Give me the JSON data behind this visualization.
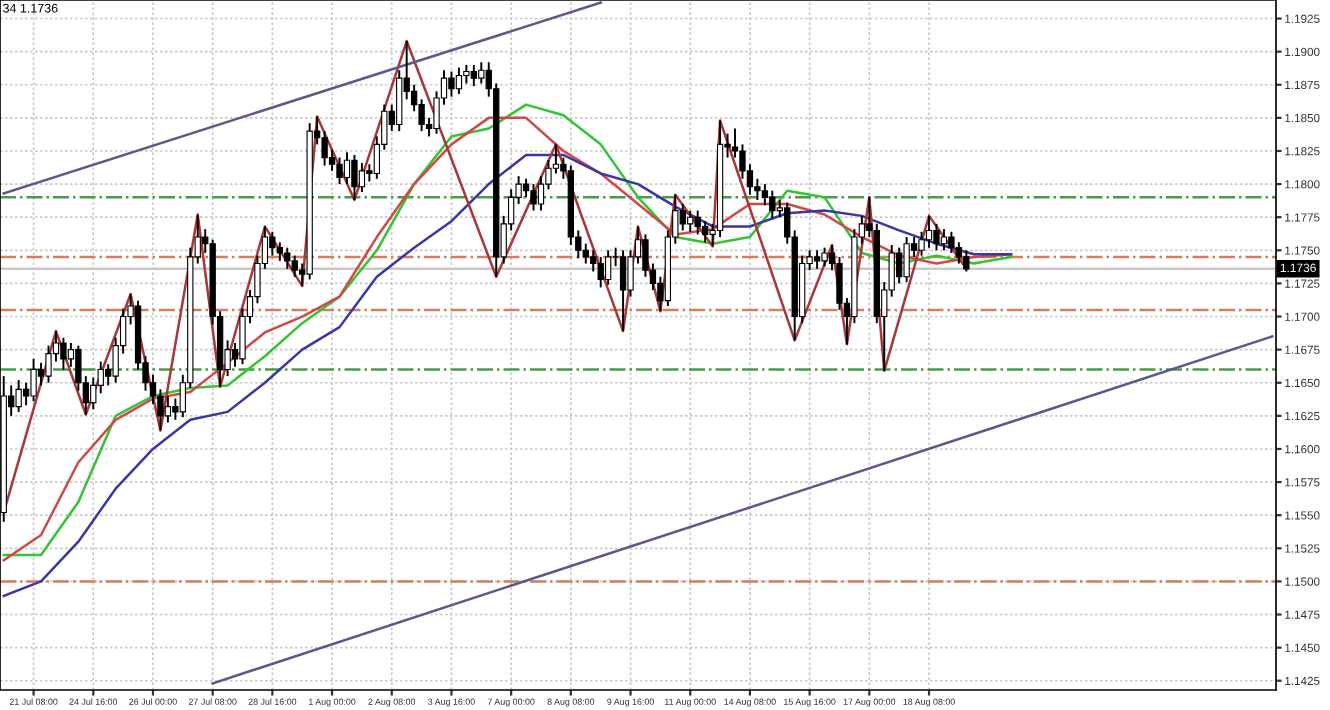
{
  "chart_data": {
    "type": "candlestick",
    "title": "34 1.1736",
    "categories": [
      null,
      null,
      null,
      null,
      "21 Jul 08:00",
      null,
      null,
      null,
      null,
      null,
      null,
      null,
      "24 Jul 16:00",
      null,
      null,
      null,
      null,
      null,
      null,
      null,
      "26 Jul 00:00",
      null,
      null,
      null,
      null,
      null,
      null,
      null,
      "27 Jul 08:00",
      null,
      null,
      null,
      null,
      null,
      null,
      null,
      "28 Jul 16:00",
      null,
      null,
      null,
      null,
      null,
      null,
      null,
      "1 Aug 00:00",
      null,
      null,
      null,
      null,
      null,
      null,
      null,
      "2 Aug 08:00",
      null,
      null,
      null,
      null,
      null,
      null,
      null,
      "3 Aug 16:00",
      null,
      null,
      null,
      null,
      null,
      null,
      null,
      "7 Aug 00:00",
      null,
      null,
      null,
      null,
      null,
      null,
      null,
      "8 Aug 08:00",
      null,
      null,
      null,
      null,
      null,
      null,
      null,
      "9 Aug 16:00",
      null,
      null,
      null,
      null,
      null,
      null,
      null,
      "11 Aug 00:00",
      null,
      null,
      null,
      null,
      null,
      null,
      null,
      "14 Aug 08:00",
      null,
      null,
      null,
      null,
      null,
      null,
      null,
      "15 Aug 16:00",
      null,
      null,
      null,
      null,
      null,
      null,
      null,
      "17 Aug 00:00",
      null,
      null,
      null,
      null,
      null,
      null,
      null,
      "18 Aug 08:00",
      null,
      null,
      null,
      null,
      null,
      null,
      null,
      null,
      null,
      null,
      null,
      null,
      null,
      null,
      null,
      null,
      null,
      null,
      null,
      null,
      null,
      null,
      null,
      null,
      null,
      null,
      null,
      null,
      null,
      null,
      null,
      null,
      null,
      null,
      null,
      null,
      null,
      null,
      null,
      null,
      null,
      null,
      null,
      null,
      null,
      null
    ],
    "ohlc": [
      [
        1.1552,
        1.1655,
        1.1545,
        1.164
      ],
      [
        1.164,
        1.1648,
        1.1625,
        1.1632
      ],
      [
        1.1632,
        1.1652,
        1.1628,
        1.1645
      ],
      [
        1.1645,
        1.165,
        1.1633,
        1.164
      ],
      [
        1.164,
        1.1668,
        1.1636,
        1.166
      ],
      [
        1.166,
        1.1665,
        1.1648,
        1.1655
      ],
      [
        1.1655,
        1.1678,
        1.165,
        1.1672
      ],
      [
        1.1672,
        1.1689,
        1.1666,
        1.168
      ],
      [
        1.168,
        1.1684,
        1.166,
        1.1668
      ],
      [
        1.1668,
        1.168,
        1.1662,
        1.1675
      ],
      [
        1.1675,
        1.1678,
        1.1644,
        1.165
      ],
      [
        1.165,
        1.1655,
        1.1626,
        1.1635
      ],
      [
        1.1635,
        1.1654,
        1.163,
        1.1648
      ],
      [
        1.1648,
        1.1666,
        1.1642,
        1.166
      ],
      [
        1.166,
        1.1664,
        1.1648,
        1.1655
      ],
      [
        1.1655,
        1.1684,
        1.165,
        1.1678
      ],
      [
        1.1678,
        1.1706,
        1.1672,
        1.17
      ],
      [
        1.17,
        1.1717,
        1.1694,
        1.1708
      ],
      [
        1.1708,
        1.1712,
        1.166,
        1.1665
      ],
      [
        1.1665,
        1.167,
        1.1644,
        1.165
      ],
      [
        1.165,
        1.1656,
        1.1634,
        1.164
      ],
      [
        1.164,
        1.1645,
        1.1614,
        1.1625
      ],
      [
        1.1625,
        1.164,
        1.162,
        1.1632
      ],
      [
        1.1632,
        1.1638,
        1.1622,
        1.1628
      ],
      [
        1.1628,
        1.1656,
        1.1624,
        1.165
      ],
      [
        1.165,
        1.1752,
        1.1646,
        1.1745
      ],
      [
        1.1745,
        1.1777,
        1.174,
        1.176
      ],
      [
        1.176,
        1.1766,
        1.1748,
        1.1755
      ],
      [
        1.1755,
        1.1758,
        1.1694,
        1.17
      ],
      [
        1.17,
        1.1704,
        1.1647,
        1.166
      ],
      [
        1.166,
        1.1682,
        1.1655,
        1.1675
      ],
      [
        1.1675,
        1.168,
        1.1662,
        1.1668
      ],
      [
        1.1668,
        1.1706,
        1.1664,
        1.17
      ],
      [
        1.17,
        1.172,
        1.1695,
        1.1715
      ],
      [
        1.1715,
        1.1746,
        1.171,
        1.174
      ],
      [
        1.174,
        1.1768,
        1.1736,
        1.176
      ],
      [
        1.176,
        1.1764,
        1.1746,
        1.1752
      ],
      [
        1.1752,
        1.1756,
        1.1742,
        1.1748
      ],
      [
        1.1748,
        1.1752,
        1.1736,
        1.1742
      ],
      [
        1.1742,
        1.1746,
        1.173,
        1.1735
      ],
      [
        1.1735,
        1.174,
        1.1723,
        1.1732
      ],
      [
        1.1732,
        1.1846,
        1.1728,
        1.184
      ],
      [
        1.184,
        1.1851,
        1.183,
        1.1835
      ],
      [
        1.1835,
        1.184,
        1.1814,
        1.182
      ],
      [
        1.182,
        1.1826,
        1.181,
        1.1815
      ],
      [
        1.1815,
        1.182,
        1.18,
        1.1805
      ],
      [
        1.1805,
        1.1824,
        1.18,
        1.1818
      ],
      [
        1.1818,
        1.1822,
        1.1788,
        1.1798
      ],
      [
        1.1798,
        1.1816,
        1.1794,
        1.181
      ],
      [
        1.181,
        1.1815,
        1.1802,
        1.1808
      ],
      [
        1.1808,
        1.1836,
        1.1804,
        1.183
      ],
      [
        1.183,
        1.186,
        1.1826,
        1.1855
      ],
      [
        1.1855,
        1.186,
        1.184,
        1.1845
      ],
      [
        1.1845,
        1.1886,
        1.184,
        1.188
      ],
      [
        1.188,
        1.1908,
        1.1864,
        1.187
      ],
      [
        1.187,
        1.1875,
        1.1855,
        1.186
      ],
      [
        1.186,
        1.1864,
        1.184,
        1.1845
      ],
      [
        1.1845,
        1.185,
        1.1836,
        1.1842
      ],
      [
        1.1842,
        1.187,
        1.1838,
        1.1865
      ],
      [
        1.1865,
        1.1886,
        1.186,
        1.188
      ],
      [
        1.188,
        1.1885,
        1.1866,
        1.1872
      ],
      [
        1.1872,
        1.1888,
        1.1868,
        1.1882
      ],
      [
        1.1882,
        1.189,
        1.1876,
        1.1885
      ],
      [
        1.1885,
        1.189,
        1.1874,
        1.188
      ],
      [
        1.188,
        1.1892,
        1.1876,
        1.1886
      ],
      [
        1.1886,
        1.1892,
        1.1866,
        1.1872
      ],
      [
        1.1872,
        1.1876,
        1.173,
        1.1745
      ],
      [
        1.1745,
        1.1776,
        1.174,
        1.177
      ],
      [
        1.177,
        1.1796,
        1.1765,
        1.179
      ],
      [
        1.179,
        1.1806,
        1.1785,
        1.18
      ],
      [
        1.18,
        1.1804,
        1.179,
        1.1795
      ],
      [
        1.1795,
        1.18,
        1.178,
        1.1785
      ],
      [
        1.1785,
        1.1806,
        1.178,
        1.18
      ],
      [
        1.18,
        1.1818,
        1.1796,
        1.1812
      ],
      [
        1.1812,
        1.183,
        1.1808,
        1.1815
      ],
      [
        1.1815,
        1.182,
        1.1804,
        1.181
      ],
      [
        1.181,
        1.1814,
        1.1754,
        1.176
      ],
      [
        1.176,
        1.1765,
        1.1744,
        1.175
      ],
      [
        1.175,
        1.1755,
        1.174,
        1.1745
      ],
      [
        1.1745,
        1.175,
        1.1734,
        1.174
      ],
      [
        1.174,
        1.1745,
        1.1722,
        1.1728
      ],
      [
        1.1728,
        1.175,
        1.1724,
        1.1745
      ],
      [
        1.1745,
        1.1752,
        1.1738,
        1.1745
      ],
      [
        1.1745,
        1.175,
        1.1689,
        1.172
      ],
      [
        1.172,
        1.175,
        1.1715,
        1.1745
      ],
      [
        1.1745,
        1.1768,
        1.174,
        1.1758
      ],
      [
        1.1758,
        1.1762,
        1.173,
        1.1735
      ],
      [
        1.1735,
        1.174,
        1.172,
        1.1725
      ],
      [
        1.1725,
        1.173,
        1.1704,
        1.1712
      ],
      [
        1.1712,
        1.1765,
        1.1708,
        1.176
      ],
      [
        1.176,
        1.1792,
        1.1755,
        1.178
      ],
      [
        1.178,
        1.1785,
        1.1765,
        1.177
      ],
      [
        1.177,
        1.178,
        1.1764,
        1.1775
      ],
      [
        1.1775,
        1.178,
        1.1762,
        1.1768
      ],
      [
        1.1768,
        1.1772,
        1.1756,
        1.1762
      ],
      [
        1.1762,
        1.177,
        1.1753,
        1.1765
      ],
      [
        1.1765,
        1.1848,
        1.176,
        1.183
      ],
      [
        1.183,
        1.1838,
        1.182,
        1.1828
      ],
      [
        1.1828,
        1.1842,
        1.182,
        1.1825
      ],
      [
        1.1825,
        1.183,
        1.1804,
        1.181
      ],
      [
        1.181,
        1.1815,
        1.1792,
        1.1798
      ],
      [
        1.1798,
        1.1804,
        1.1788,
        1.1795
      ],
      [
        1.1795,
        1.18,
        1.1784,
        1.179
      ],
      [
        1.179,
        1.1795,
        1.1774,
        1.178
      ],
      [
        1.178,
        1.1788,
        1.1775,
        1.1782
      ],
      [
        1.1782,
        1.1786,
        1.1755,
        1.176
      ],
      [
        1.176,
        1.1765,
        1.1682,
        1.17
      ],
      [
        1.17,
        1.1746,
        1.1695,
        1.174
      ],
      [
        1.174,
        1.175,
        1.1735,
        1.1745
      ],
      [
        1.1745,
        1.175,
        1.1736,
        1.1742
      ],
      [
        1.1742,
        1.1752,
        1.1738,
        1.1748
      ],
      [
        1.1748,
        1.1754,
        1.1735,
        1.174
      ],
      [
        1.174,
        1.1745,
        1.1705,
        1.171
      ],
      [
        1.171,
        1.1714,
        1.1679,
        1.17
      ],
      [
        1.17,
        1.1766,
        1.1695,
        1.176
      ],
      [
        1.176,
        1.1776,
        1.1755,
        1.177
      ],
      [
        1.177,
        1.179,
        1.176,
        1.1765
      ],
      [
        1.1765,
        1.177,
        1.1695,
        1.17
      ],
      [
        1.17,
        1.1726,
        1.1659,
        1.172
      ],
      [
        1.172,
        1.1754,
        1.1715,
        1.1748
      ],
      [
        1.1748,
        1.1752,
        1.1725,
        1.173
      ],
      [
        1.173,
        1.176,
        1.1726,
        1.1755
      ],
      [
        1.1755,
        1.176,
        1.1745,
        1.175
      ],
      [
        1.175,
        1.1764,
        1.1746,
        1.1758
      ],
      [
        1.1758,
        1.1776,
        1.1752,
        1.1765
      ],
      [
        1.1765,
        1.177,
        1.175,
        1.1755
      ],
      [
        1.1755,
        1.1766,
        1.175,
        1.176
      ],
      [
        1.176,
        1.1764,
        1.1748,
        1.1752
      ],
      [
        1.1752,
        1.1756,
        1.174,
        1.1745
      ],
      [
        1.1745,
        1.175,
        1.1734,
        1.1736
      ],
      null,
      null,
      null,
      null,
      null,
      null,
      null,
      null,
      null,
      null,
      null,
      null,
      null,
      null,
      null,
      null,
      null,
      null,
      null,
      null,
      null,
      null,
      null,
      null,
      null,
      null,
      null,
      null,
      null,
      null,
      null,
      null,
      null,
      null,
      null,
      null,
      null,
      null,
      null,
      null,
      null
    ],
    "series": [
      {
        "type": "line",
        "color": "#33c433",
        "values": [
          1.152,
          null,
          null,
          null,
          null,
          1.152,
          null,
          null,
          null,
          null,
          1.156,
          null,
          null,
          null,
          null,
          1.1625,
          null,
          null,
          null,
          null,
          1.164,
          null,
          null,
          null,
          null,
          1.1646,
          null,
          null,
          null,
          null,
          1.1648,
          null,
          null,
          null,
          null,
          1.167,
          null,
          null,
          null,
          null,
          1.1695,
          null,
          null,
          null,
          null,
          1.1715,
          null,
          null,
          null,
          null,
          1.175,
          null,
          null,
          null,
          null,
          1.18,
          null,
          null,
          null,
          null,
          1.1836,
          null,
          null,
          null,
          null,
          1.1842,
          null,
          null,
          null,
          null,
          1.186,
          null,
          null,
          null,
          null,
          1.1852,
          null,
          null,
          null,
          null,
          1.183,
          null,
          null,
          null,
          null,
          1.179,
          null,
          null,
          null,
          null,
          1.176,
          null,
          null,
          null,
          null,
          1.1755,
          null,
          null,
          null,
          null,
          1.176,
          null,
          null,
          null,
          null,
          1.1795,
          null,
          null,
          null,
          null,
          1.179,
          null,
          null,
          null,
          null,
          1.1748,
          null,
          null,
          null,
          null,
          1.174,
          null,
          null,
          null,
          null,
          1.1746,
          null,
          null,
          null,
          null,
          1.174,
          null,
          null,
          null,
          null,
          1.1745,
          null,
          null,
          null,
          null,
          null,
          null,
          null,
          null,
          null,
          null,
          null,
          null,
          null,
          null,
          null,
          null,
          null,
          null,
          null,
          null,
          null,
          null,
          null,
          null,
          null,
          null,
          null,
          null,
          null,
          null,
          null,
          null,
          null,
          null,
          null
        ]
      },
      {
        "type": "line",
        "color": "#d04848",
        "values": [
          1.1516,
          null,
          null,
          null,
          null,
          1.1535,
          null,
          null,
          null,
          null,
          1.159,
          null,
          null,
          null,
          null,
          1.1622,
          null,
          null,
          null,
          null,
          1.1638,
          null,
          null,
          null,
          null,
          1.1643,
          null,
          null,
          null,
          null,
          1.1665,
          null,
          null,
          null,
          null,
          1.1688,
          null,
          null,
          null,
          null,
          1.17,
          null,
          null,
          null,
          null,
          1.1715,
          null,
          null,
          null,
          null,
          1.176,
          null,
          null,
          null,
          null,
          1.18,
          null,
          null,
          null,
          null,
          1.183,
          null,
          null,
          null,
          null,
          1.185,
          null,
          null,
          null,
          null,
          1.185,
          null,
          null,
          null,
          null,
          1.1825,
          null,
          null,
          null,
          null,
          1.1808,
          null,
          null,
          null,
          null,
          1.1785,
          null,
          null,
          null,
          null,
          1.1762,
          null,
          null,
          null,
          null,
          1.1766,
          null,
          null,
          null,
          null,
          1.1785,
          null,
          null,
          null,
          null,
          1.1785,
          null,
          null,
          null,
          null,
          1.1777,
          null,
          null,
          null,
          null,
          1.176,
          null,
          null,
          null,
          null,
          1.1746,
          null,
          null,
          null,
          null,
          1.174,
          null,
          null,
          null,
          null,
          1.1745,
          null,
          null,
          null,
          null,
          1.1747,
          null,
          null,
          null,
          null,
          null,
          null,
          null,
          null,
          null,
          null,
          null,
          null,
          null,
          null,
          null,
          null,
          null,
          null,
          null,
          null,
          null,
          null,
          null,
          null,
          null,
          null,
          null,
          null,
          null,
          null,
          null,
          null,
          null,
          null,
          null
        ]
      },
      {
        "type": "line",
        "color": "#3838a0",
        "values": [
          1.1489,
          null,
          null,
          null,
          null,
          1.15,
          null,
          null,
          null,
          null,
          1.153,
          null,
          null,
          null,
          null,
          1.157,
          null,
          null,
          null,
          null,
          1.16,
          null,
          null,
          null,
          null,
          1.1622,
          null,
          null,
          null,
          null,
          1.1628,
          null,
          null,
          null,
          null,
          1.165,
          null,
          null,
          null,
          null,
          1.1675,
          null,
          null,
          null,
          null,
          1.1692,
          null,
          null,
          null,
          null,
          1.173,
          null,
          null,
          null,
          null,
          1.1752,
          null,
          null,
          null,
          null,
          1.1772,
          null,
          null,
          null,
          null,
          1.18,
          null,
          null,
          null,
          null,
          1.1822,
          null,
          null,
          null,
          null,
          1.1822,
          null,
          null,
          null,
          null,
          1.1808,
          null,
          null,
          null,
          null,
          1.18,
          null,
          null,
          null,
          null,
          1.1783,
          null,
          null,
          null,
          null,
          1.1768,
          null,
          null,
          null,
          null,
          1.1768,
          null,
          null,
          null,
          null,
          1.1778,
          null,
          null,
          null,
          null,
          1.178,
          null,
          null,
          null,
          null,
          1.1776,
          null,
          null,
          null,
          null,
          1.1765,
          null,
          null,
          null,
          null,
          1.1755,
          null,
          null,
          null,
          null,
          1.1747,
          null,
          null,
          null,
          null,
          1.1747,
          null,
          null,
          null,
          null,
          null,
          null,
          null,
          null,
          null,
          null,
          null,
          null,
          null,
          null,
          null,
          null,
          null,
          null,
          null,
          null,
          null,
          null,
          null,
          null,
          null,
          null,
          null,
          null,
          null,
          null,
          null,
          null,
          null,
          null,
          null
        ]
      },
      {
        "type": "line",
        "color": "#a83838",
        "values": [
          1.1552,
          null,
          null,
          null,
          null,
          null,
          null,
          1.1689,
          null,
          null,
          null,
          1.1626,
          null,
          null,
          null,
          null,
          null,
          1.1717,
          null,
          null,
          null,
          1.1614,
          null,
          null,
          null,
          null,
          1.1777,
          null,
          null,
          1.1647,
          null,
          null,
          null,
          null,
          null,
          1.1768,
          null,
          null,
          null,
          null,
          1.1723,
          null,
          1.1851,
          null,
          null,
          null,
          null,
          1.1788,
          null,
          null,
          null,
          null,
          null,
          null,
          1.1908,
          null,
          null,
          null,
          null,
          null,
          null,
          null,
          null,
          null,
          null,
          null,
          1.173,
          null,
          null,
          null,
          null,
          null,
          null,
          null,
          1.183,
          null,
          null,
          null,
          null,
          null,
          null,
          null,
          null,
          1.1689,
          null,
          1.1768,
          null,
          null,
          1.1704,
          null,
          1.1792,
          null,
          null,
          null,
          null,
          1.1753,
          1.1848,
          null,
          null,
          null,
          null,
          null,
          null,
          null,
          null,
          null,
          1.1682,
          null,
          null,
          null,
          null,
          1.1754,
          null,
          1.1679,
          null,
          null,
          1.179,
          null,
          1.1659,
          null,
          null,
          null,
          null,
          null,
          1.1776,
          null,
          null,
          null,
          null,
          1.1736,
          null,
          null,
          null,
          null,
          null,
          null,
          null,
          null,
          null,
          null,
          null,
          null,
          null,
          null,
          null,
          null,
          null,
          null,
          null,
          null,
          null,
          null,
          null,
          null,
          null,
          null,
          null,
          null,
          null,
          null,
          null,
          null,
          null,
          null,
          null,
          null,
          null,
          null,
          null,
          null,
          null
        ]
      },
      {
        "type": "line",
        "color": "#5a5a88",
        "values": [
          1.1793,
          null,
          null,
          null,
          null,
          null,
          null,
          null,
          null,
          null,
          null,
          null,
          null,
          null,
          null,
          null,
          null,
          null,
          null,
          null,
          null,
          null,
          null,
          null,
          null,
          null,
          null,
          null,
          null,
          null,
          null,
          null,
          null,
          null,
          null,
          null,
          null,
          null,
          null,
          null,
          null,
          null,
          null,
          null,
          null,
          null,
          null,
          null,
          null,
          null,
          null,
          null,
          null,
          null,
          null,
          null,
          null,
          null,
          null,
          null,
          null,
          null,
          null,
          null,
          null,
          null,
          null,
          null,
          null,
          null,
          null,
          null,
          null,
          null,
          null,
          null,
          null,
          null,
          null,
          null,
          1.1937,
          null,
          null,
          null,
          null,
          null,
          null,
          null,
          null,
          null,
          null,
          null,
          null,
          null,
          null,
          null,
          null,
          null,
          null,
          null,
          null,
          null,
          null,
          null,
          null,
          null,
          null,
          null,
          null,
          null,
          null,
          null,
          null,
          null,
          null,
          null,
          null,
          null,
          null,
          null,
          null,
          null,
          null,
          null,
          null,
          null,
          null,
          null,
          null,
          null,
          null,
          null,
          null,
          null,
          null,
          null,
          null,
          null,
          null,
          null,
          null,
          null,
          null,
          null,
          null,
          null,
          null,
          null,
          null,
          null,
          null,
          null,
          null,
          null,
          null,
          null,
          null,
          null,
          null,
          null,
          null,
          null,
          null,
          null,
          null,
          null,
          null,
          null,
          null,
          null,
          null
        ]
      },
      {
        "type": "line",
        "color": "#5a5a88",
        "values": [
          null,
          null,
          null,
          null,
          null,
          null,
          null,
          null,
          null,
          null,
          null,
          null,
          null,
          null,
          null,
          null,
          null,
          null,
          null,
          null,
          null,
          null,
          null,
          null,
          null,
          null,
          null,
          null,
          1.1423,
          null,
          null,
          null,
          null,
          null,
          null,
          null,
          null,
          null,
          null,
          null,
          null,
          null,
          null,
          null,
          null,
          null,
          null,
          null,
          null,
          null,
          null,
          null,
          null,
          null,
          null,
          null,
          null,
          null,
          null,
          null,
          null,
          null,
          null,
          null,
          null,
          null,
          null,
          null,
          null,
          null,
          null,
          null,
          null,
          null,
          null,
          null,
          null,
          null,
          null,
          null,
          null,
          null,
          null,
          null,
          null,
          null,
          null,
          null,
          null,
          null,
          null,
          null,
          null,
          null,
          null,
          null,
          null,
          null,
          null,
          null,
          null,
          null,
          null,
          null,
          null,
          null,
          null,
          null,
          null,
          null,
          null,
          null,
          null,
          null,
          null,
          null,
          null,
          null,
          null,
          null,
          null,
          null,
          null,
          null,
          null,
          null,
          null,
          null,
          null,
          null,
          null,
          null,
          null,
          null,
          null,
          null,
          null,
          null,
          null,
          null,
          null,
          null,
          null,
          null,
          null,
          null,
          null,
          null,
          null,
          null,
          null,
          null,
          null,
          null,
          null,
          null,
          null,
          null,
          null,
          null,
          null,
          null,
          null,
          null,
          null,
          null,
          null,
          null,
          null,
          null,
          1.1685
        ]
      }
    ],
    "ref_lines": [
      {
        "axis": "y",
        "value": 1.179,
        "color": "#4a9a4a",
        "line_style": "dashed"
      },
      {
        "axis": "y",
        "value": 1.1745,
        "color": "#d08060",
        "line_style": "dashed"
      },
      {
        "axis": "y",
        "value": 1.1705,
        "color": "#d08060",
        "line_style": "dashed"
      },
      {
        "axis": "y",
        "value": 1.166,
        "color": "#4a9a4a",
        "line_style": "dashed"
      },
      {
        "axis": "y",
        "value": 1.15,
        "color": "#d08060",
        "line_style": "dashed"
      },
      {
        "axis": "y",
        "value": 1.1736,
        "label": "1.1736",
        "color": "#c8c8c8",
        "line_style": "solid"
      }
    ],
    "ylim": [
      1.1418,
      1.1939
    ],
    "yticks": [
      1.1425,
      {
        "value": 1.145,
        "label": "1.1450"
      },
      1.1475,
      {
        "value": 1.15,
        "label": "1.1500"
      },
      1.1525,
      {
        "value": 1.155,
        "label": "1.1550"
      },
      1.1575,
      {
        "value": 1.16,
        "label": "1.1600"
      },
      1.1625,
      {
        "value": 1.165,
        "label": "1.1650"
      },
      1.1675,
      {
        "value": 1.17,
        "label": "1.1700"
      },
      1.1725,
      {
        "value": 1.175,
        "label": "1.1750"
      },
      1.1775,
      {
        "value": 1.18,
        "label": "1.1800"
      },
      1.1825,
      {
        "value": 1.185,
        "label": "1.1850"
      },
      1.1875,
      {
        "value": 1.19,
        "label": "1.1900"
      },
      1.1925
    ],
    "grid": true,
    "legend": false
  }
}
